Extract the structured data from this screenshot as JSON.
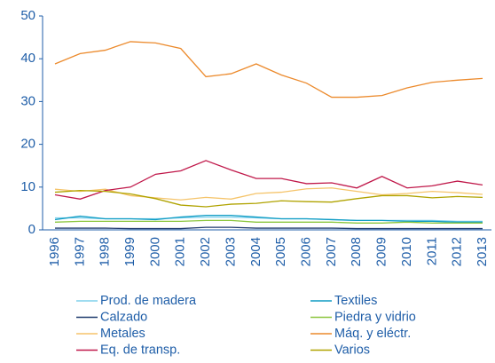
{
  "chart_data": {
    "type": "line",
    "categories": [
      "1996",
      "1997",
      "1998",
      "1999",
      "2000",
      "2001",
      "2002",
      "2003",
      "2004",
      "2005",
      "2006",
      "2007",
      "2008",
      "2009",
      "2010",
      "2011",
      "2012",
      "2013"
    ],
    "ylim": [
      0,
      50
    ],
    "yticks": [
      0,
      10,
      20,
      30,
      40,
      50
    ],
    "grid": false,
    "legend": "bottom",
    "series": [
      {
        "name": "Prod. de madera",
        "color": "#7fd0ec",
        "values": [
          2.8,
          2.8,
          2.6,
          2.6,
          2.6,
          2.8,
          3,
          3,
          2.8,
          2.6,
          2.6,
          2.4,
          2.2,
          2.2,
          2.2,
          2.2,
          2,
          2
        ]
      },
      {
        "name": "Textiles",
        "color": "#0f9cc4",
        "values": [
          2.4,
          3.2,
          2.6,
          2.6,
          2.4,
          3,
          3.4,
          3.4,
          3,
          2.6,
          2.6,
          2.4,
          2.2,
          2.2,
          2,
          2,
          1.8,
          1.8
        ]
      },
      {
        "name": "Calzado",
        "color": "#1f3a6e",
        "values": [
          0.4,
          0.4,
          0.4,
          0.3,
          0.3,
          0.3,
          0.6,
          0.6,
          0.4,
          0.4,
          0.4,
          0.4,
          0.3,
          0.3,
          0.3,
          0.3,
          0.3,
          0.3
        ]
      },
      {
        "name": "Piedra y vidrio",
        "color": "#8cc63f",
        "values": [
          1.8,
          2,
          2,
          2,
          2,
          2,
          2.2,
          2.2,
          1.8,
          1.8,
          1.8,
          1.8,
          1.6,
          1.6,
          1.8,
          1.6,
          1.6,
          1.6
        ]
      },
      {
        "name": "Metales",
        "color": "#f5c46a",
        "values": [
          9.5,
          9,
          9.5,
          8,
          7.5,
          7,
          7.6,
          7.2,
          8.5,
          8.8,
          9.6,
          9.8,
          9,
          8.2,
          8.5,
          9,
          8.7,
          8.3
        ]
      },
      {
        "name": "Máq. y eléctr.",
        "color": "#ec8a2c",
        "values": [
          38.8,
          41.2,
          42,
          44,
          43.7,
          42.4,
          35.8,
          36.5,
          38.8,
          36.2,
          34.3,
          31,
          31,
          31.4,
          33.2,
          34.5,
          35,
          35.4
        ]
      },
      {
        "name": "Eq. de transp.",
        "color": "#c0184a",
        "values": [
          8.2,
          7.2,
          9.2,
          10,
          13,
          13.8,
          16.2,
          14,
          12,
          12,
          10.8,
          11,
          9.8,
          12.5,
          9.8,
          10.3,
          11.4,
          10.5
        ]
      },
      {
        "name": "Varios",
        "color": "#b0a300",
        "values": [
          8.8,
          9.2,
          9,
          8.4,
          7.3,
          5.8,
          5.4,
          6,
          6.2,
          6.8,
          6.6,
          6.5,
          7.3,
          8,
          8,
          7.5,
          7.8,
          7.6
        ]
      }
    ]
  }
}
